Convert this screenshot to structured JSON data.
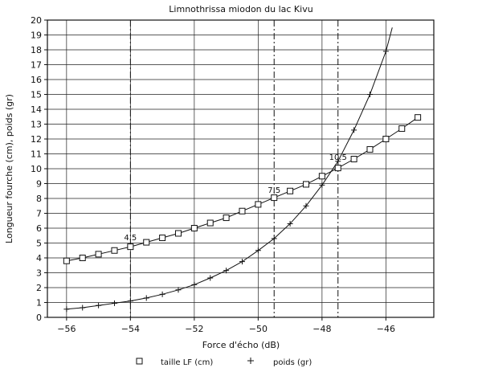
{
  "chart_data": {
    "type": "scatter",
    "title": "Limnothrissa miodon du lac Kivu",
    "xlabel": "Force d'écho (dB)",
    "ylabel": "Longueur fourche (cm), poids (gr)",
    "xlim": [
      -56.6,
      -44.5
    ],
    "ylim": [
      0,
      20
    ],
    "x_ticks": [
      -56,
      -54,
      -52,
      -50,
      -48,
      -46
    ],
    "x_tick_labels": [
      "−56",
      "−54",
      "−52",
      "−50",
      "−48",
      "−46"
    ],
    "y_ticks": [
      0,
      1,
      2,
      3,
      4,
      5,
      6,
      7,
      8,
      9,
      10,
      11,
      12,
      13,
      14,
      15,
      16,
      17,
      18,
      19,
      20
    ],
    "y_tick_labels": [
      "0",
      "1",
      "2",
      "3",
      "4",
      "5",
      "6",
      "7",
      "8",
      "9",
      "10",
      "11",
      "12",
      "13",
      "14",
      "15",
      "16",
      "17",
      "18",
      "19",
      "20"
    ],
    "grid": true,
    "vertical_markers": [
      -54,
      -49.5,
      -47.5
    ],
    "annotations": [
      {
        "text": "4.5",
        "x": -54.0,
        "y": 5.4
      },
      {
        "text": "7.5",
        "x": -49.5,
        "y": 8.6
      },
      {
        "text": "10.5",
        "x": -47.5,
        "y": 10.8
      }
    ],
    "series": [
      {
        "name": "taille LF (cm)",
        "marker": "square",
        "x": [
          -56,
          -55.5,
          -55,
          -54.5,
          -54,
          -53.5,
          -53,
          -52.5,
          -52,
          -51.5,
          -51,
          -50.5,
          -50,
          -49.5,
          -49,
          -48.5,
          -48,
          -47.5,
          -47,
          -46.5,
          -46,
          -45.5,
          -45
        ],
        "y": [
          3.8,
          4.0,
          4.25,
          4.5,
          4.75,
          5.05,
          5.35,
          5.65,
          6.0,
          6.35,
          6.7,
          7.15,
          7.6,
          8.05,
          8.5,
          8.95,
          9.5,
          10.05,
          10.65,
          11.3,
          12.0,
          12.7,
          13.45
        ]
      },
      {
        "name": "poids (gr)",
        "marker": "plus",
        "x": [
          -56,
          -55.5,
          -55,
          -54.5,
          -54,
          -53.5,
          -53,
          -52.5,
          -52,
          -51.5,
          -51,
          -50.5,
          -50,
          -49.5,
          -49,
          -48.5,
          -48,
          -47.5,
          -47,
          -46.5,
          -46
        ],
        "y": [
          0.55,
          0.65,
          0.8,
          0.95,
          1.1,
          1.3,
          1.55,
          1.85,
          2.2,
          2.65,
          3.15,
          3.75,
          4.5,
          5.3,
          6.3,
          7.5,
          8.9,
          10.5,
          12.6,
          15.0,
          17.9
        ]
      }
    ],
    "curve_extension": {
      "x": [
        -46,
        -45.8
      ],
      "y": [
        17.9,
        19.5
      ]
    },
    "legend": [
      {
        "label": "taille LF (cm)",
        "symbol": "□"
      },
      {
        "label": "poids (gr)",
        "symbol": "+"
      }
    ],
    "legend_position": "bottom"
  }
}
